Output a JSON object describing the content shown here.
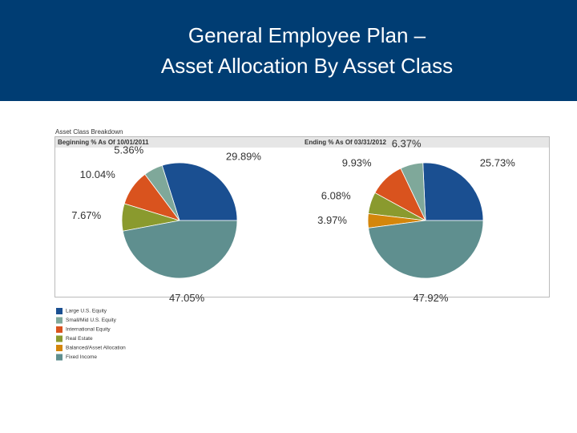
{
  "slide_title": [
    "General Employee Plan –",
    "Asset Allocation By Asset Class"
  ],
  "panel_title": "Asset Class Breakdown",
  "legend": {
    "items": [
      {
        "name": "Large U.S. Equity",
        "color": "#1a4f91"
      },
      {
        "name": "Small/Mid U.S. Equity",
        "color": "#7fa89a"
      },
      {
        "name": "International Equity",
        "color": "#d9531e"
      },
      {
        "name": "Real Estate",
        "color": "#8a9a2e"
      },
      {
        "name": "Balanced/Asset Allocation",
        "color": "#d4860b"
      },
      {
        "name": "Fixed Income",
        "color": "#5f8f8f"
      }
    ]
  },
  "chart_data": [
    {
      "type": "pie",
      "title": "Beginning % As Of 10/01/2011",
      "values": [
        29.89,
        5.36,
        10.04,
        7.67,
        47.05
      ],
      "value_labels": [
        "29.89%",
        "5.36%",
        "10.04%",
        "7.67%",
        "47.05%"
      ],
      "colors": [
        "#1a4f91",
        "#7fa89a",
        "#d9531e",
        "#8a9a2e",
        "#5f8f8f"
      ]
    },
    {
      "type": "pie",
      "title": "Ending % As Of 03/31/2012",
      "values": [
        25.73,
        6.37,
        9.93,
        6.08,
        3.97,
        47.92
      ],
      "value_labels": [
        "25.73%",
        "6.37%",
        "9.93%",
        "6.08%",
        "3.97%",
        "47.92%"
      ],
      "colors": [
        "#1a4f91",
        "#7fa89a",
        "#d9531e",
        "#8a9a2e",
        "#d4860b",
        "#5f8f8f"
      ]
    }
  ]
}
